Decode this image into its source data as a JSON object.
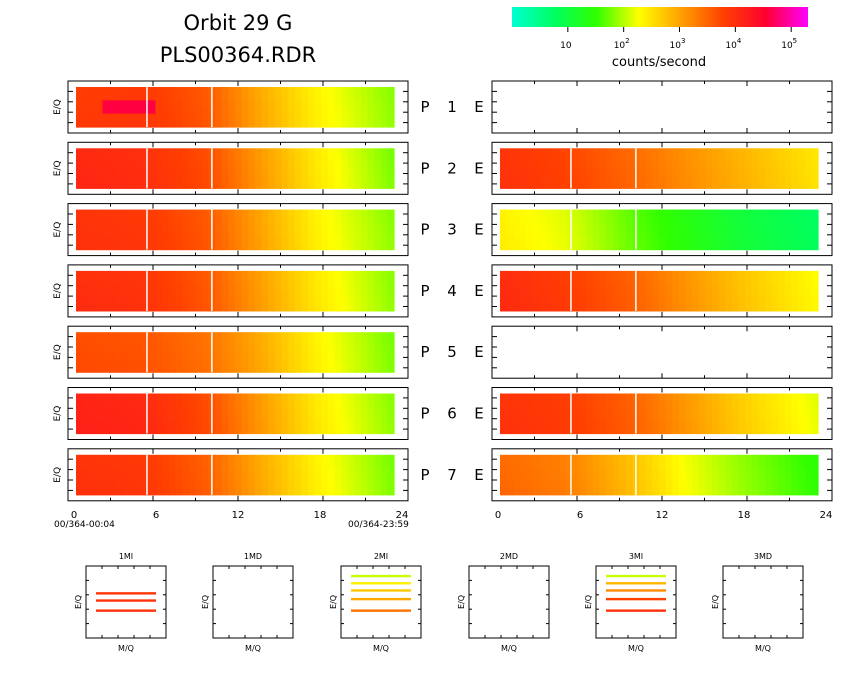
{
  "header": {
    "title_line1": "Orbit  29  G",
    "title_line2": "PLS00364.RDR"
  },
  "colorbar": {
    "label": "counts/second",
    "ticks": [
      {
        "value": 10,
        "base": "10",
        "exp": ""
      },
      {
        "value": 100,
        "base": "10",
        "exp": "2"
      },
      {
        "value": 1000,
        "base": "10",
        "exp": "3"
      },
      {
        "value": 10000,
        "base": "10",
        "exp": "4"
      },
      {
        "value": 100000,
        "base": "10",
        "exp": "5"
      }
    ],
    "range": [
      1,
      200000
    ],
    "scale": "log",
    "colors": [
      "#00ffd2",
      "#00ff60",
      "#30ff00",
      "#ffff00",
      "#ffa000",
      "#ff4000",
      "#ff0030",
      "#ff00ff"
    ]
  },
  "chart_data": {
    "type": "heatmap",
    "ylabel": "E/Q",
    "xlim": [
      0,
      24
    ],
    "x_ticks": [
      "0",
      "6",
      "12",
      "18",
      "24"
    ],
    "time_start": "00/364-00:04",
    "time_end": "00/364-23:59",
    "scale": "log",
    "rows": [
      {
        "label": "P",
        "num": "1",
        "elabel": "E",
        "p": {
          "knots": [
            [
              0,
              7000
            ],
            [
              5,
              8000
            ],
            [
              10,
              4000
            ],
            [
              14,
              900
            ],
            [
              18,
              250
            ],
            [
              24,
              70
            ]
          ],
          "hot": [
            [
              2,
              6,
              40000
            ]
          ]
        },
        "e": null
      },
      {
        "label": "P",
        "num": "2",
        "elabel": "E",
        "p": {
          "knots": [
            [
              0,
              12000
            ],
            [
              5,
              10000
            ],
            [
              10,
              5000
            ],
            [
              14,
              1200
            ],
            [
              18,
              300
            ],
            [
              24,
              60
            ]
          ],
          "hot": []
        },
        "e": {
          "knots": [
            [
              0,
              9000
            ],
            [
              5,
              6000
            ],
            [
              10,
              3000
            ],
            [
              14,
              1500
            ],
            [
              18,
              800
            ],
            [
              24,
              300
            ]
          ],
          "hot": []
        }
      },
      {
        "label": "P",
        "num": "3",
        "elabel": "E",
        "p": {
          "knots": [
            [
              0,
              9000
            ],
            [
              5,
              8000
            ],
            [
              10,
              4000
            ],
            [
              14,
              1000
            ],
            [
              18,
              250
            ],
            [
              24,
              70
            ]
          ],
          "hot": []
        },
        "e": {
          "knots": [
            [
              0,
              250
            ],
            [
              5,
              150
            ],
            [
              10,
              50
            ],
            [
              14,
              25
            ],
            [
              18,
              12
            ],
            [
              24,
              6
            ]
          ],
          "hot": []
        }
      },
      {
        "label": "P",
        "num": "4",
        "elabel": "E",
        "p": {
          "knots": [
            [
              0,
              10000
            ],
            [
              5,
              9000
            ],
            [
              10,
              4000
            ],
            [
              14,
              1100
            ],
            [
              18,
              300
            ],
            [
              24,
              70
            ]
          ],
          "hot": []
        },
        "e": {
          "knots": [
            [
              0,
              11000
            ],
            [
              5,
              7000
            ],
            [
              10,
              3500
            ],
            [
              14,
              1400
            ],
            [
              18,
              600
            ],
            [
              24,
              200
            ]
          ],
          "hot": []
        }
      },
      {
        "label": "P",
        "num": "5",
        "elabel": "E",
        "p": {
          "knots": [
            [
              0,
              5000
            ],
            [
              5,
              4500
            ],
            [
              10,
              2500
            ],
            [
              14,
              900
            ],
            [
              18,
              250
            ],
            [
              24,
              60
            ]
          ],
          "hot": []
        },
        "e": null
      },
      {
        "label": "P",
        "num": "6",
        "elabel": "E",
        "p": {
          "knots": [
            [
              0,
              14000
            ],
            [
              5,
              12000
            ],
            [
              10,
              5000
            ],
            [
              14,
              1200
            ],
            [
              18,
              300
            ],
            [
              24,
              70
            ]
          ],
          "hot": []
        },
        "e": {
          "knots": [
            [
              0,
              9000
            ],
            [
              5,
              7000
            ],
            [
              10,
              3500
            ],
            [
              14,
              1300
            ],
            [
              18,
              500
            ],
            [
              24,
              150
            ]
          ],
          "hot": []
        }
      },
      {
        "label": "P",
        "num": "7",
        "elabel": "E",
        "p": {
          "knots": [
            [
              0,
              9000
            ],
            [
              5,
              8000
            ],
            [
              10,
              3500
            ],
            [
              14,
              900
            ],
            [
              18,
              250
            ],
            [
              24,
              60
            ]
          ],
          "hot": []
        },
        "e": {
          "knots": [
            [
              0,
              3000
            ],
            [
              5,
              2000
            ],
            [
              10,
              600
            ],
            [
              14,
              180
            ],
            [
              18,
              80
            ],
            [
              24,
              30
            ]
          ],
          "hot": []
        }
      }
    ],
    "ms_panels": [
      {
        "title": "1MI",
        "bands": [
          {
            "eq": 0.62,
            "value": 8000
          },
          {
            "eq": 0.52,
            "value": 9000
          },
          {
            "eq": 0.38,
            "value": 9000
          }
        ]
      },
      {
        "title": "1MD",
        "bands": []
      },
      {
        "title": "2MI",
        "bands": [
          {
            "eq": 0.86,
            "value": 120
          },
          {
            "eq": 0.76,
            "value": 250
          },
          {
            "eq": 0.66,
            "value": 500
          },
          {
            "eq": 0.54,
            "value": 900
          },
          {
            "eq": 0.38,
            "value": 2500
          }
        ]
      },
      {
        "title": "2MD",
        "bands": []
      },
      {
        "title": "3MI",
        "bands": [
          {
            "eq": 0.86,
            "value": 120
          },
          {
            "eq": 0.76,
            "value": 700
          },
          {
            "eq": 0.66,
            "value": 1500
          },
          {
            "eq": 0.54,
            "value": 6000
          },
          {
            "eq": 0.38,
            "value": 9000
          }
        ]
      },
      {
        "title": "3MD",
        "bands": []
      }
    ],
    "ms_xlabel": "M/Q",
    "ms_ylabel": "E/Q"
  }
}
